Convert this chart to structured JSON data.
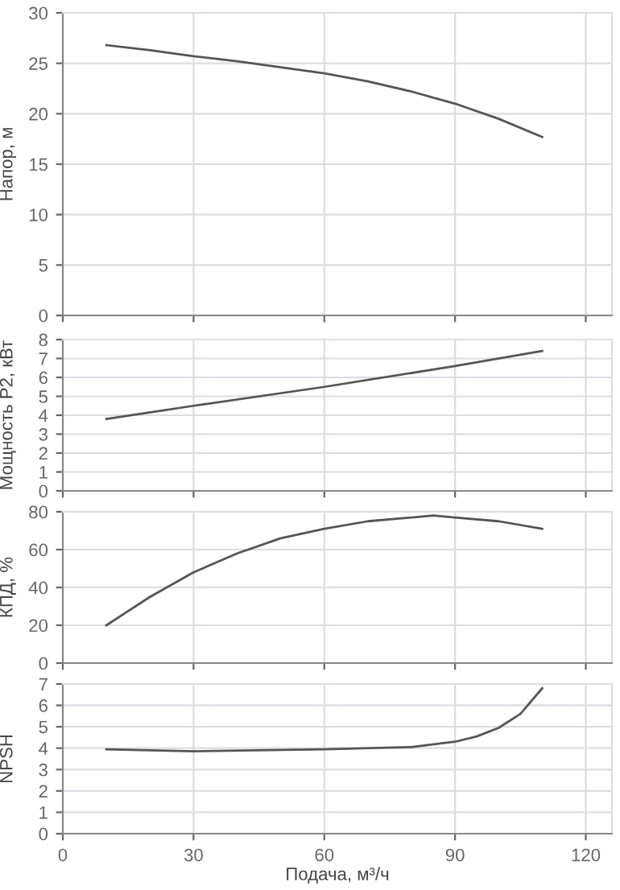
{
  "chart_data": [
    {
      "type": "line",
      "ylabel": "Напор, м",
      "xlim": [
        0,
        126
      ],
      "xticks": [
        0,
        30,
        60,
        90,
        120
      ],
      "ylim": [
        0,
        30
      ],
      "yticks": [
        0,
        5,
        10,
        15,
        20,
        25,
        30
      ],
      "grid": true,
      "tick_labels": "y",
      "series": [
        {
          "color": "#555555",
          "x": [
            10,
            20,
            30,
            40,
            50,
            60,
            70,
            80,
            90,
            100,
            110
          ],
          "values": [
            26.8,
            26.3,
            25.7,
            25.2,
            24.6,
            24.0,
            23.2,
            22.2,
            21.0,
            19.5,
            17.7
          ]
        }
      ]
    },
    {
      "type": "line",
      "ylabel": "Мощность P2, кВт",
      "xlim": [
        0,
        126
      ],
      "xticks": [
        0,
        30,
        60,
        90,
        120
      ],
      "ylim": [
        0,
        8
      ],
      "yticks": [
        0,
        1,
        2,
        3,
        4,
        5,
        6,
        7,
        8
      ],
      "grid": true,
      "tick_labels": "y",
      "series": [
        {
          "color": "#555555",
          "x": [
            10,
            30,
            60,
            90,
            110
          ],
          "values": [
            3.8,
            4.5,
            5.5,
            6.6,
            7.4
          ]
        }
      ]
    },
    {
      "type": "line",
      "ylabel": "КПД, %",
      "xlim": [
        0,
        126
      ],
      "xticks": [
        0,
        30,
        60,
        90,
        120
      ],
      "ylim": [
        0,
        80
      ],
      "yticks": [
        0,
        20,
        40,
        60,
        80
      ],
      "grid": true,
      "tick_labels": "y",
      "series": [
        {
          "color": "#555555",
          "x": [
            10,
            20,
            30,
            40,
            50,
            60,
            70,
            80,
            85,
            90,
            100,
            110
          ],
          "values": [
            20,
            35,
            48,
            58,
            66,
            71,
            75,
            77,
            78,
            77,
            75,
            71
          ]
        }
      ]
    },
    {
      "type": "line",
      "ylabel": "NPSH",
      "xlabel": "Подача, м³/ч",
      "xlim": [
        0,
        126
      ],
      "xticks": [
        0,
        30,
        60,
        90,
        120
      ],
      "ylim": [
        0,
        7
      ],
      "yticks": [
        0,
        1,
        2,
        3,
        4,
        5,
        6,
        7
      ],
      "grid": true,
      "series": [
        {
          "color": "#555555",
          "x": [
            10,
            30,
            60,
            80,
            90,
            95,
            100,
            105,
            110
          ],
          "values": [
            3.95,
            3.85,
            3.95,
            4.05,
            4.3,
            4.55,
            4.95,
            5.6,
            6.8
          ]
        }
      ]
    }
  ]
}
